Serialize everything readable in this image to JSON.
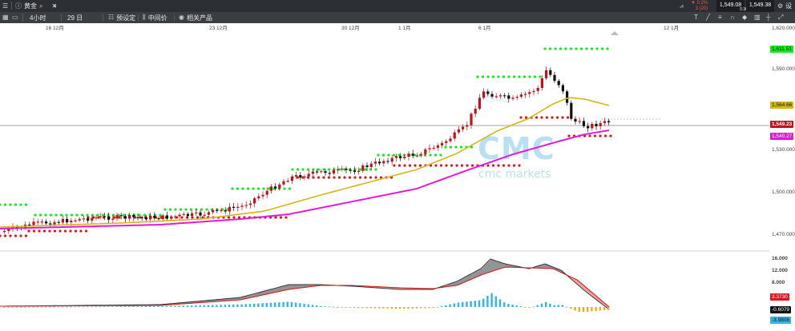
{
  "topbar": {
    "menu_icon": "menu-icon",
    "tab_info_icon": "info-icon",
    "instrument": "黄金",
    "search_icon": "search-icon",
    "close_icon": "close-icon",
    "add_label": "+",
    "change_percent": "▼ 0.2%",
    "change_points": "3 (20)",
    "sell_price": "1,549.08",
    "spread": "0.30",
    "buy_price": "1,549.38",
    "settings_label": "设"
  },
  "toolbar": {
    "timeframe": "4小时",
    "period": "29 日",
    "preset_label": "预设定",
    "midprice_label": "中间价",
    "related_label": "相关产品"
  },
  "dates": [
    "16 12月",
    "23 12月",
    "30 12月",
    "1 1月",
    "6 1月",
    "12 1月"
  ],
  "price_axis": [
    "1,620.000",
    "1,590.000",
    "1,530.000",
    "1,500.000",
    "1,470.000"
  ],
  "price_tags": {
    "upper": "1,611.51",
    "ma_slow": "1,564.66",
    "current": "1,549.23",
    "lower": "1,540.27"
  },
  "macd_axis": [
    "16.000",
    "12.000",
    "8.000"
  ],
  "macd_tags": {
    "macd": "3.3730",
    "signal": "-0.6079",
    "hist": "-3.9808"
  },
  "watermark": {
    "brand": "CMC",
    "brand_name": "cmc markets",
    "faint": "CHAL"
  },
  "colors": {
    "bull": "#c0121b",
    "bear": "#111111",
    "ma_fast": "#d4b715",
    "ma_slow": "#e21ad6",
    "dots_up": "#14e81e",
    "dots_down": "#e0141a",
    "macd_line": "#d11a1a",
    "hist_pos": "#33b4e6",
    "hist_neg": "#f0a81c",
    "tag_current": "#c0121b"
  }
}
